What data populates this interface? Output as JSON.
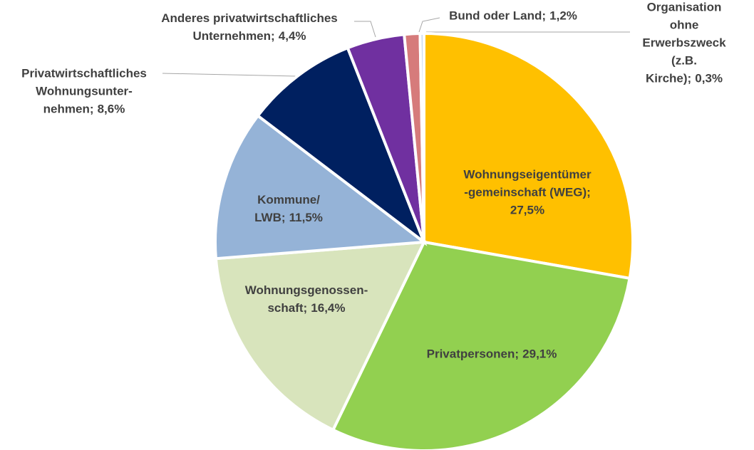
{
  "chart_data": {
    "type": "pie",
    "categories": [
      "Wohnungseigentümer\n-gemeinschaft (WEG);",
      "Privatpersonen;",
      "Wohnungsgenossen-\nschaft;",
      "Kommune/\nLWB;",
      "Privatwirtschaftliches\nWohnungsunter-\nnehmen;",
      "Anderes privatwirtschaftliches\nUnternehmen;",
      "Bund oder Land;",
      "Organisation ohne\nErwerbszweck (z.B.\nKirche);"
    ],
    "values": [
      27.5,
      29.1,
      16.4,
      11.5,
      8.6,
      4.4,
      1.2,
      0.3
    ],
    "value_labels": [
      "27,5%",
      "29,1%",
      "16,4%",
      "11,5%",
      "8,6%",
      "4,4%",
      "1,2%",
      "0,3%"
    ],
    "colors": [
      "#ffc000",
      "#92d050",
      "#d8e4bc",
      "#95b3d7",
      "#002060",
      "#7030a0",
      "#d67b7b",
      "#c5d9f1"
    ]
  }
}
